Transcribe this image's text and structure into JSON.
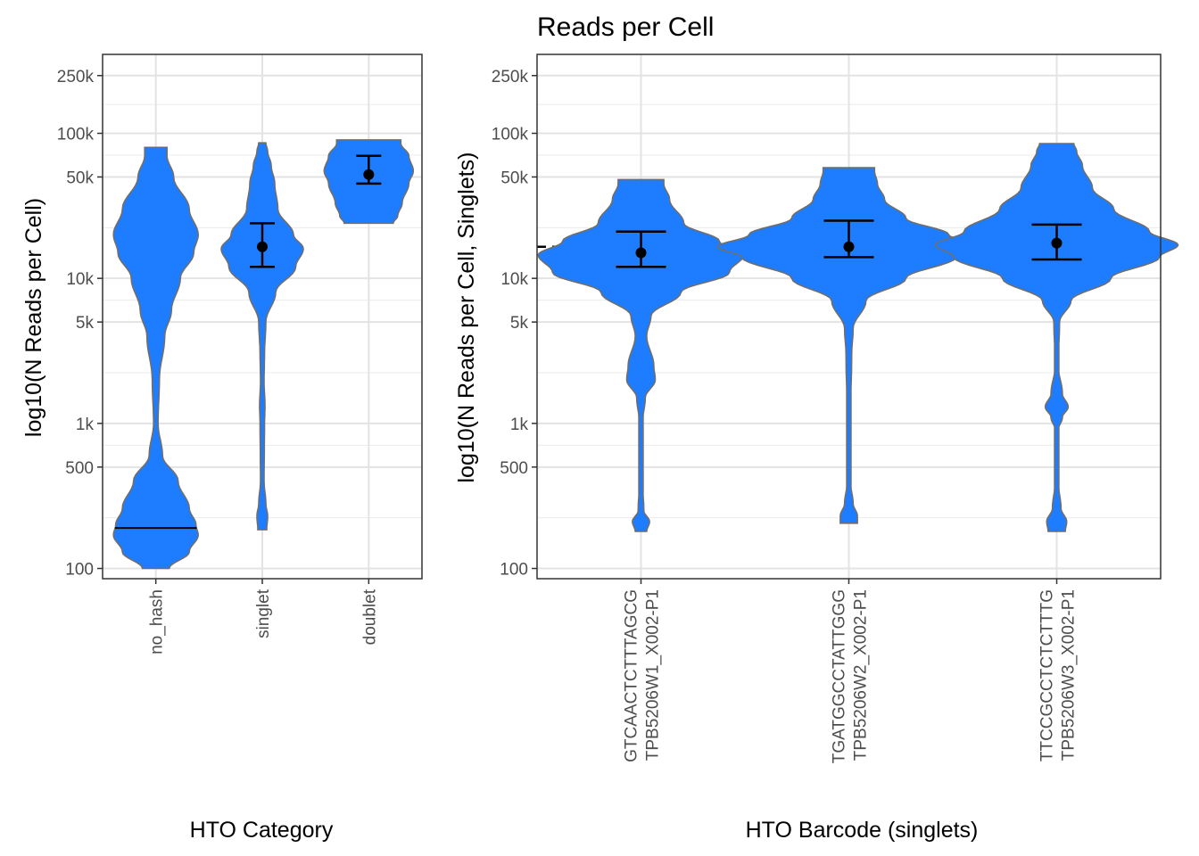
{
  "chart_data": [
    {
      "type": "violin",
      "title": "",
      "xlabel": "HTO Category",
      "ylabel": "log10(N Reads per Cell)",
      "y_scale": "log10",
      "ylim": [
        85,
        350000
      ],
      "y_ticks": [
        100,
        500,
        1000,
        5000,
        10000,
        50000,
        100000,
        250000
      ],
      "y_tick_labels": [
        "100",
        "500",
        "1k",
        "5k",
        "10k",
        "50k",
        "100k",
        "250k"
      ],
      "categories": [
        "no_hash",
        "singlet",
        "doublet"
      ],
      "fill": "#1e7dff",
      "outline": "#6e6e6e",
      "violins": [
        {
          "category": "no_hash",
          "min": 100,
          "max": 80000,
          "profile": [
            [
              100,
              0.3
            ],
            [
              130,
              0.75
            ],
            [
              170,
              0.95
            ],
            [
              200,
              0.9
            ],
            [
              260,
              0.75
            ],
            [
              400,
              0.5
            ],
            [
              600,
              0.15
            ],
            [
              1000,
              0.05
            ],
            [
              2000,
              0.08
            ],
            [
              4000,
              0.2
            ],
            [
              6000,
              0.35
            ],
            [
              10000,
              0.55
            ],
            [
              15000,
              0.85
            ],
            [
              20000,
              0.95
            ],
            [
              30000,
              0.75
            ],
            [
              50000,
              0.4
            ],
            [
              70000,
              0.25
            ],
            [
              80000,
              0.25
            ]
          ],
          "median": 190,
          "mean": null,
          "ci_low": null,
          "ci_high": null
        },
        {
          "category": "singlet",
          "min": 185,
          "max": 86000,
          "profile": [
            [
              185,
              0.1
            ],
            [
              230,
              0.12
            ],
            [
              280,
              0.08
            ],
            [
              400,
              0.04
            ],
            [
              1000,
              0.05
            ],
            [
              1300,
              0.06
            ],
            [
              2000,
              0.04
            ],
            [
              3000,
              0.05
            ],
            [
              5000,
              0.08
            ],
            [
              8000,
              0.3
            ],
            [
              12000,
              0.75
            ],
            [
              16000,
              0.92
            ],
            [
              20000,
              0.7
            ],
            [
              30000,
              0.35
            ],
            [
              45000,
              0.28
            ],
            [
              60000,
              0.2
            ],
            [
              75000,
              0.12
            ],
            [
              86000,
              0.08
            ]
          ],
          "median": null,
          "mean": 16500,
          "ci_low": 12000,
          "ci_high": 24000
        },
        {
          "category": "doublet",
          "min": 24000,
          "max": 90000,
          "profile": [
            [
              24000,
              0.55
            ],
            [
              27000,
              0.65
            ],
            [
              33000,
              0.75
            ],
            [
              45000,
              0.9
            ],
            [
              55000,
              1.0
            ],
            [
              70000,
              0.9
            ],
            [
              85000,
              0.72
            ],
            [
              90000,
              0.72
            ]
          ],
          "median": null,
          "mean": 52000,
          "ci_low": 45000,
          "ci_high": 70000
        }
      ]
    },
    {
      "type": "violin",
      "title": "Reads per Cell",
      "xlabel": "HTO Barcode (singlets)",
      "ylabel": "log10(N Reads per Cell, Singlets)",
      "y_scale": "log10",
      "ylim": [
        85,
        350000
      ],
      "y_ticks": [
        100,
        500,
        1000,
        5000,
        10000,
        50000,
        100000,
        250000
      ],
      "y_tick_labels": [
        "100",
        "500",
        "1k",
        "5k",
        "10k",
        "50k",
        "100k",
        "250k"
      ],
      "categories": [
        "GTCAACTCTTTAGCG\nTPB5206W1_X002-P1",
        "TGATGGCCTATTGGG\nTPB5206W2_X002-P1",
        "TTCCGCCTCTCTTTG\nTPB5206W3_X002-P1"
      ],
      "reference_line": 16500,
      "fill": "#1e7dff",
      "outline": "#6e6e6e",
      "violins": [
        {
          "category": "GTCAACTCTTTAGCG\nTPB5206W1_X002-P1",
          "min": 180,
          "max": 48000,
          "profile": [
            [
              180,
              0.04
            ],
            [
              210,
              0.06
            ],
            [
              250,
              0.02
            ],
            [
              400,
              0.01
            ],
            [
              1000,
              0.01
            ],
            [
              1500,
              0.03
            ],
            [
              2000,
              0.1
            ],
            [
              2500,
              0.09
            ],
            [
              4000,
              0.04
            ],
            [
              5500,
              0.07
            ],
            [
              8000,
              0.28
            ],
            [
              11000,
              0.62
            ],
            [
              14500,
              0.72
            ],
            [
              18000,
              0.55
            ],
            [
              24000,
              0.3
            ],
            [
              35000,
              0.2
            ],
            [
              45000,
              0.16
            ],
            [
              48000,
              0.16
            ]
          ],
          "median": null,
          "mean": 15000,
          "ci_low": 12000,
          "ci_high": 21000
        },
        {
          "category": "TGATGGCCTATTGGG\nTPB5206W2_X002-P1",
          "min": 205,
          "max": 58000,
          "profile": [
            [
              205,
              0.06
            ],
            [
              230,
              0.06
            ],
            [
              280,
              0.03
            ],
            [
              400,
              0.01
            ],
            [
              1000,
              0.01
            ],
            [
              3000,
              0.02
            ],
            [
              4500,
              0.03
            ],
            [
              7000,
              0.12
            ],
            [
              10000,
              0.4
            ],
            [
              14000,
              0.75
            ],
            [
              16500,
              0.92
            ],
            [
              20000,
              0.7
            ],
            [
              26000,
              0.4
            ],
            [
              35000,
              0.25
            ],
            [
              45000,
              0.2
            ],
            [
              55000,
              0.18
            ],
            [
              58000,
              0.18
            ]
          ],
          "median": null,
          "mean": 16500,
          "ci_low": 14000,
          "ci_high": 25000
        },
        {
          "category": "TTCCGCCTCTCTTTG\nTPB5206W3_X002-P1",
          "min": 180,
          "max": 85000,
          "profile": [
            [
              180,
              0.06
            ],
            [
              210,
              0.07
            ],
            [
              260,
              0.03
            ],
            [
              400,
              0.01
            ],
            [
              900,
              0.01
            ],
            [
              1100,
              0.04
            ],
            [
              1300,
              0.08
            ],
            [
              1600,
              0.04
            ],
            [
              2500,
              0.01
            ],
            [
              5000,
              0.02
            ],
            [
              7000,
              0.1
            ],
            [
              10000,
              0.38
            ],
            [
              14000,
              0.72
            ],
            [
              17000,
              0.85
            ],
            [
              21000,
              0.65
            ],
            [
              30000,
              0.4
            ],
            [
              42000,
              0.25
            ],
            [
              60000,
              0.18
            ],
            [
              75000,
              0.14
            ],
            [
              85000,
              0.12
            ]
          ],
          "median": null,
          "mean": 17500,
          "ci_low": 13500,
          "ci_high": 23500
        }
      ]
    }
  ]
}
